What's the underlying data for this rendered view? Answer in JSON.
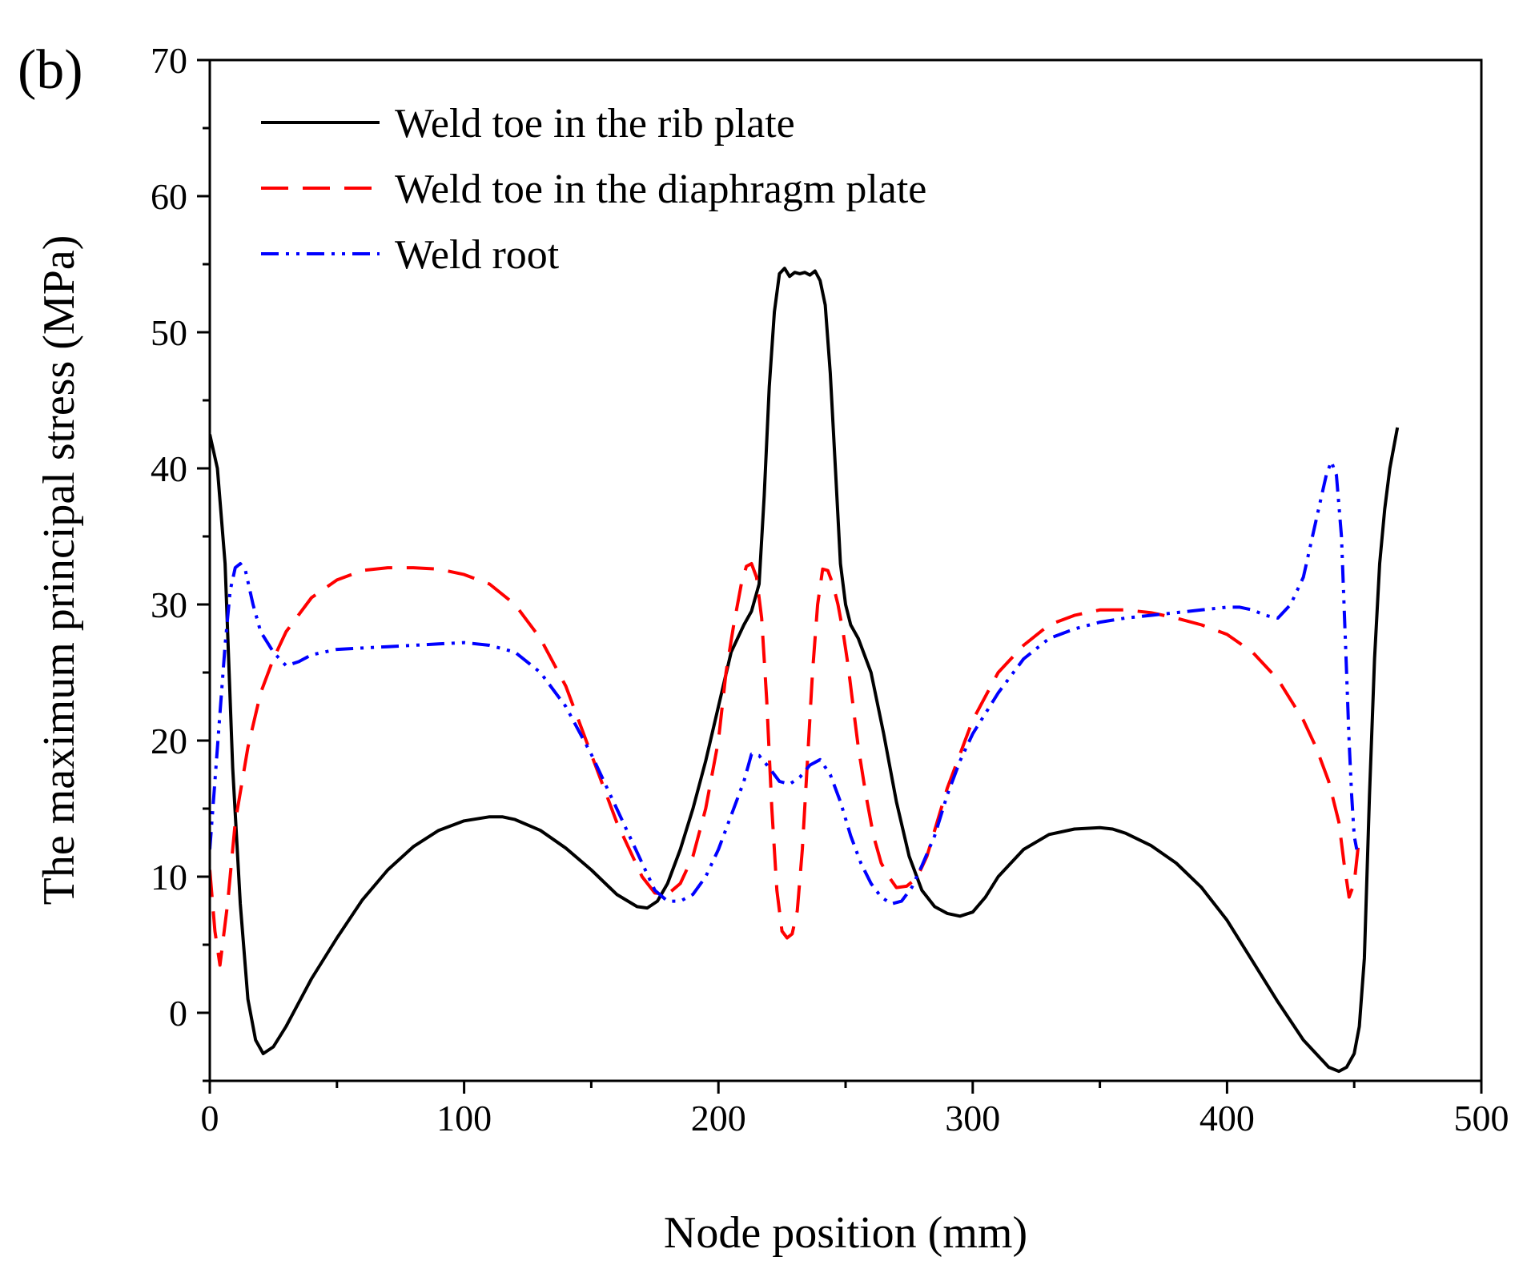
{
  "chart_data": {
    "type": "line",
    "panel_label": "(b)",
    "xlabel": "Node position (mm)",
    "ylabel": "The  maximum principal stress (MPa)",
    "xlim": [
      0,
      500
    ],
    "ylim": [
      -5,
      70
    ],
    "xticks": [
      0,
      100,
      200,
      300,
      400,
      500
    ],
    "yticks": [
      0,
      10,
      20,
      30,
      40,
      50,
      60,
      70
    ],
    "xtick_labels": [
      "0",
      "100",
      "200",
      "300",
      "400",
      "500"
    ],
    "ytick_labels": [
      "0",
      "10",
      "20",
      "30",
      "40",
      "50",
      "60",
      "70"
    ],
    "legend_position": "top-left",
    "series": [
      {
        "name": "Weld toe in the rib plate",
        "color": "#000000",
        "dash": "solid",
        "x": [
          0,
          3,
          6,
          9,
          12,
          15,
          18,
          21,
          25,
          30,
          40,
          50,
          60,
          70,
          80,
          90,
          100,
          110,
          115,
          120,
          130,
          140,
          150,
          160,
          168,
          172,
          176,
          180,
          185,
          190,
          195,
          200,
          205,
          210,
          213,
          216,
          218,
          220,
          222,
          224,
          226,
          228,
          230,
          232,
          234,
          236,
          238,
          240,
          242,
          244,
          246,
          248,
          250,
          252,
          255,
          260,
          265,
          270,
          275,
          280,
          285,
          290,
          295,
          300,
          305,
          310,
          320,
          330,
          340,
          350,
          355,
          360,
          370,
          380,
          390,
          400,
          410,
          420,
          430,
          440,
          444,
          447,
          450,
          452,
          454,
          456,
          458,
          460,
          462,
          464,
          467
        ],
        "values": [
          42.5,
          40,
          33,
          18,
          8,
          1,
          -2,
          -3,
          -2.5,
          -1,
          2.5,
          5.5,
          8.3,
          10.5,
          12.2,
          13.4,
          14.1,
          14.4,
          14.4,
          14.2,
          13.4,
          12.1,
          10.5,
          8.7,
          7.8,
          7.7,
          8.2,
          9.5,
          12,
          15,
          18.5,
          22.5,
          26.5,
          28.5,
          29.5,
          31.5,
          38,
          46,
          51.5,
          54.3,
          54.7,
          54.1,
          54.4,
          54.3,
          54.4,
          54.2,
          54.5,
          53.8,
          52,
          47,
          40,
          33,
          30,
          28.5,
          27.5,
          25,
          20.5,
          15.5,
          11.5,
          9,
          7.8,
          7.3,
          7.1,
          7.4,
          8.5,
          10,
          12,
          13.1,
          13.5,
          13.6,
          13.5,
          13.2,
          12.3,
          11,
          9.2,
          6.8,
          3.8,
          0.8,
          -2,
          -4,
          -4.3,
          -4,
          -3,
          -1,
          4,
          16,
          26,
          33,
          37,
          40,
          43
        ]
      },
      {
        "name": "Weld toe in the diaphragm plate",
        "color": "#ff0000",
        "dash": "dashed",
        "x": [
          0,
          2,
          4,
          7,
          10,
          15,
          20,
          25,
          30,
          40,
          50,
          60,
          70,
          80,
          90,
          100,
          110,
          120,
          130,
          140,
          150,
          160,
          170,
          175,
          180,
          185,
          190,
          195,
          200,
          203,
          206,
          209,
          211,
          213,
          215,
          217,
          219,
          221,
          223,
          225,
          227,
          229,
          231,
          233,
          235,
          237,
          239,
          241,
          243,
          245,
          247,
          249,
          251,
          253,
          255,
          258,
          261,
          264,
          267,
          270,
          274,
          278,
          282,
          286,
          290,
          300,
          310,
          320,
          330,
          340,
          350,
          360,
          370,
          380,
          390,
          400,
          410,
          420,
          430,
          435,
          440,
          444,
          446,
          448,
          450,
          452
        ],
        "values": [
          10.5,
          6,
          3.5,
          8,
          14,
          19.5,
          23.5,
          26,
          28,
          30.5,
          31.8,
          32.5,
          32.7,
          32.7,
          32.6,
          32.2,
          31.5,
          30,
          27.5,
          24,
          19,
          14,
          10,
          8.8,
          8.7,
          9.5,
          11.5,
          15,
          20,
          25,
          28.5,
          31.5,
          32.8,
          33,
          32,
          29,
          23,
          15,
          9,
          6,
          5.5,
          5.8,
          7.5,
          12,
          18.5,
          25,
          30,
          32.6,
          32.5,
          31.5,
          30,
          28,
          25.5,
          22.5,
          19.5,
          16,
          13,
          11,
          10,
          9.2,
          9.3,
          9.9,
          11.5,
          14,
          16.5,
          21.5,
          25,
          27,
          28.5,
          29.2,
          29.6,
          29.6,
          29.4,
          29,
          28.5,
          27.8,
          26.5,
          24.5,
          21.5,
          19.5,
          17,
          14,
          11,
          8.5,
          9.5,
          13
        ]
      },
      {
        "name": "Weld root",
        "color": "#0000ff",
        "dash": "dash-dot-dot",
        "x": [
          0,
          2,
          4,
          6,
          8,
          10,
          12,
          14,
          17,
          20,
          25,
          30,
          35,
          40,
          50,
          60,
          70,
          80,
          90,
          100,
          110,
          120,
          130,
          140,
          150,
          160,
          170,
          175,
          180,
          185,
          190,
          195,
          200,
          205,
          210,
          213,
          216,
          220,
          224,
          228,
          232,
          236,
          240,
          244,
          248,
          252,
          256,
          260,
          264,
          268,
          272,
          276,
          280,
          285,
          290,
          295,
          300,
          310,
          320,
          330,
          340,
          350,
          360,
          370,
          380,
          390,
          400,
          405,
          410,
          415,
          420,
          425,
          430,
          433,
          436,
          439,
          441,
          443,
          445,
          446,
          447,
          448,
          449,
          450,
          451
        ],
        "values": [
          12,
          17,
          22,
          27,
          31,
          32.7,
          33,
          32.5,
          30,
          28,
          26.5,
          25.5,
          25.8,
          26.3,
          26.7,
          26.8,
          26.9,
          27,
          27.1,
          27.2,
          27,
          26.5,
          25,
          22.5,
          19,
          15,
          11,
          9,
          8.2,
          8.2,
          8.7,
          10,
          12,
          14.5,
          17,
          19,
          18.9,
          18,
          17,
          16.8,
          17.3,
          18.2,
          18.6,
          17.5,
          15.5,
          13,
          11,
          9.5,
          8.5,
          8,
          8.2,
          9.2,
          10.8,
          13,
          16,
          18.5,
          20.5,
          23.5,
          26,
          27.5,
          28.2,
          28.7,
          29,
          29.2,
          29.4,
          29.6,
          29.8,
          29.8,
          29.6,
          29.2,
          29,
          30,
          32,
          34.5,
          37,
          39.5,
          40.5,
          39.5,
          35,
          30,
          25,
          20,
          16,
          13,
          12
        ]
      }
    ]
  }
}
